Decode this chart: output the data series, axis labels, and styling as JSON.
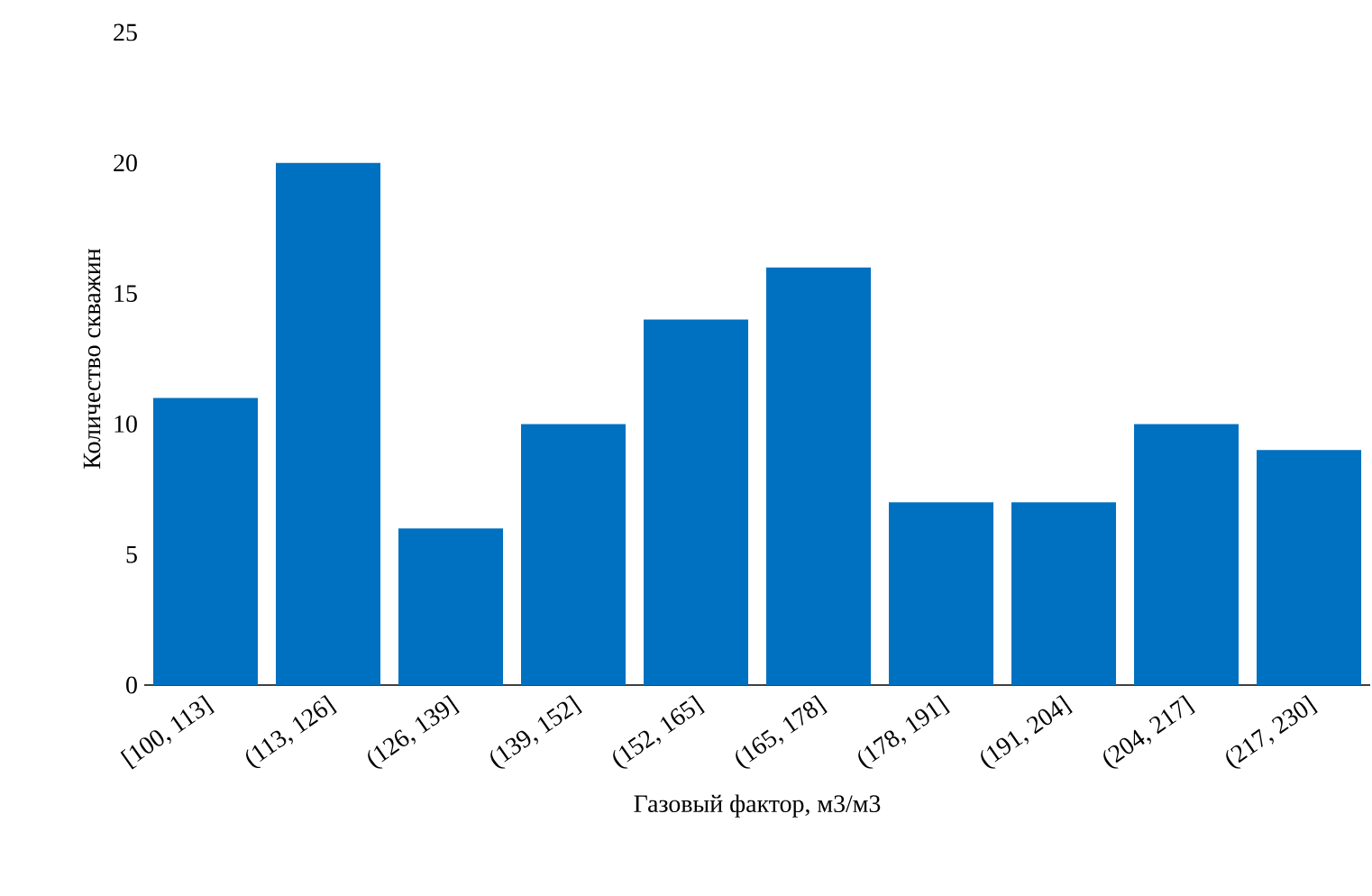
{
  "chart_data": {
    "type": "bar",
    "xlabel": "Газовый фактор, м3/м3",
    "ylabel": "Количество скважин",
    "categories": [
      "[100, 113]",
      "(113, 126]",
      "(126, 139]",
      "(139, 152]",
      "(152, 165]",
      "(165, 178]",
      "(178, 191]",
      "(191, 204]",
      "(204, 217]",
      "(217, 230]"
    ],
    "values": [
      11,
      20,
      6,
      10,
      14,
      16,
      7,
      7,
      10,
      9
    ],
    "color": "#0070c0",
    "ylim": [
      0,
      25
    ],
    "yticks": [
      0,
      5,
      10,
      15,
      20,
      25
    ],
    "grid": false
  }
}
